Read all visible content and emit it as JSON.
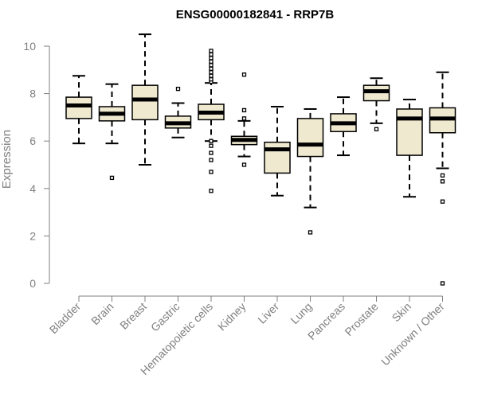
{
  "chart_data": {
    "type": "boxplot",
    "title": "ENSG00000182841 - RRP7B",
    "ylabel": "Expression",
    "xlabel": "",
    "ylim": [
      0,
      10
    ],
    "yticks": [
      0,
      2,
      4,
      6,
      8,
      10
    ],
    "box_fill": "#efe9d0",
    "categories": [
      "Bladder",
      "Brain",
      "Breast",
      "Gastric",
      "Hematopoietic cells",
      "Kidney",
      "Liver",
      "Lung",
      "Pancreas",
      "Prostate",
      "Skin",
      "Unknown / Other"
    ],
    "boxes": [
      {
        "whisker_low": 5.9,
        "q1": 6.95,
        "median": 7.5,
        "q3": 7.85,
        "whisker_high": 8.75,
        "outliers": []
      },
      {
        "whisker_low": 5.9,
        "q1": 6.85,
        "median": 7.15,
        "q3": 7.45,
        "whisker_high": 8.4,
        "outliers": [
          4.45
        ]
      },
      {
        "whisker_low": 5.0,
        "q1": 6.9,
        "median": 7.75,
        "q3": 8.35,
        "whisker_high": 10.5,
        "outliers": []
      },
      {
        "whisker_low": 6.15,
        "q1": 6.55,
        "median": 6.75,
        "q3": 7.05,
        "whisker_high": 7.6,
        "outliers": [
          8.2
        ]
      },
      {
        "whisker_low": 6.0,
        "q1": 6.9,
        "median": 7.2,
        "q3": 7.55,
        "whisker_high": 8.45,
        "outliers": [
          3.9,
          4.7,
          5.2,
          5.5,
          5.8,
          6.0,
          8.5,
          8.6,
          8.75,
          8.9,
          9.05,
          9.2,
          9.35,
          9.5,
          9.65,
          9.8
        ]
      },
      {
        "whisker_low": 5.35,
        "q1": 5.85,
        "median": 6.05,
        "q3": 6.2,
        "whisker_high": 6.85,
        "outliers": [
          5.0,
          6.95,
          7.3,
          8.8
        ]
      },
      {
        "whisker_low": 3.7,
        "q1": 4.65,
        "median": 5.65,
        "q3": 5.95,
        "whisker_high": 7.45,
        "outliers": []
      },
      {
        "whisker_low": 3.2,
        "q1": 5.35,
        "median": 5.85,
        "q3": 6.95,
        "whisker_high": 7.35,
        "outliers": [
          2.15
        ]
      },
      {
        "whisker_low": 5.4,
        "q1": 6.4,
        "median": 6.75,
        "q3": 7.15,
        "whisker_high": 7.85,
        "outliers": []
      },
      {
        "whisker_low": 6.75,
        "q1": 7.7,
        "median": 8.1,
        "q3": 8.35,
        "whisker_high": 8.65,
        "outliers": [
          6.5
        ]
      },
      {
        "whisker_low": 3.65,
        "q1": 5.4,
        "median": 6.95,
        "q3": 7.35,
        "whisker_high": 7.75,
        "outliers": []
      },
      {
        "whisker_low": 4.85,
        "q1": 6.35,
        "median": 6.95,
        "q3": 7.4,
        "whisker_high": 8.9,
        "outliers": [
          0.0,
          3.45,
          4.3,
          4.55
        ]
      }
    ]
  }
}
